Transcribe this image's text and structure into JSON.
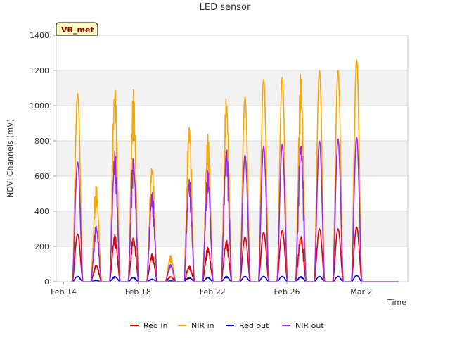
{
  "chart_data": {
    "type": "line",
    "title": "LED sensor",
    "xlabel": "Time",
    "ylabel": "NDVI Channels (mV)",
    "ylim": [
      0,
      1400
    ],
    "yticks": [
      0,
      200,
      400,
      600,
      800,
      1000,
      1200,
      1400
    ],
    "xlim_days": [
      13.6,
      32.5
    ],
    "xticks": [
      {
        "day": 14,
        "label": "Feb 14"
      },
      {
        "day": 18,
        "label": "Feb 18"
      },
      {
        "day": 22,
        "label": "Feb 22"
      },
      {
        "day": 26,
        "label": "Feb 26"
      },
      {
        "day": 30,
        "label": "Mar 2"
      }
    ],
    "badge": "VR_met",
    "grid": "horizontal bands",
    "legend_position": "bottom",
    "series": [
      {
        "name": "Red in",
        "color": "#dd0000",
        "daily_peaks": [
          270,
          100,
          270,
          260,
          160,
          30,
          90,
          200,
          240,
          255,
          280,
          290,
          270,
          300,
          300,
          310
        ]
      },
      {
        "name": "NIR in",
        "color": "#ffa500",
        "daily_peaks": [
          1070,
          550,
          1150,
          1090,
          690,
          150,
          930,
          840,
          1080,
          1050,
          1150,
          1160,
          1200,
          1200,
          1200,
          1260
        ]
      },
      {
        "name": "Red out",
        "color": "#0000cc",
        "daily_peaks": [
          30,
          8,
          30,
          25,
          15,
          5,
          25,
          25,
          30,
          30,
          30,
          30,
          30,
          30,
          30,
          35
        ]
      },
      {
        "name": "NIR out",
        "color": "#9a2be2",
        "daily_peaks": [
          680,
          330,
          750,
          720,
          520,
          100,
          600,
          640,
          780,
          720,
          770,
          780,
          830,
          800,
          810,
          820
        ]
      }
    ]
  }
}
